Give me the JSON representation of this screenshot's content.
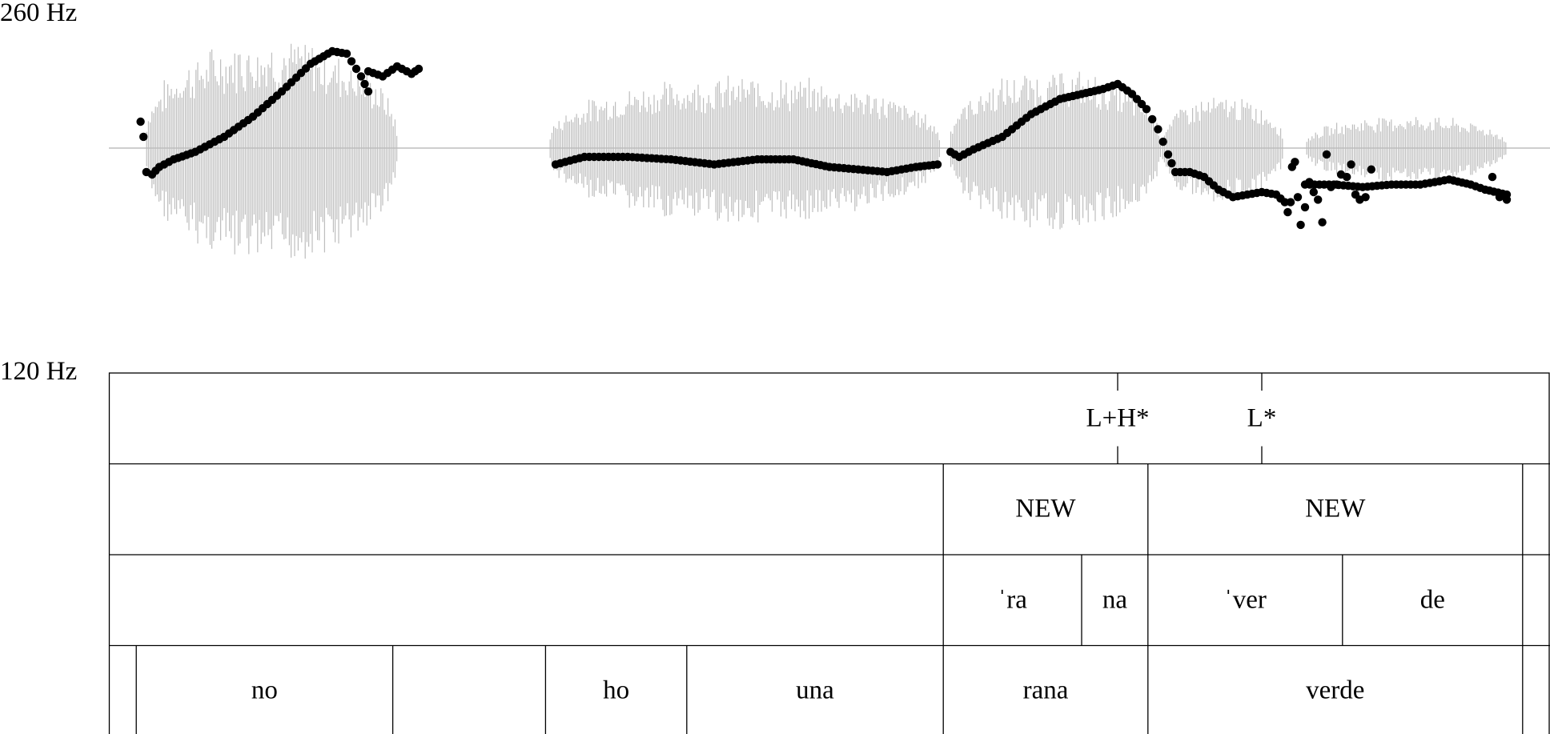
{
  "axis": {
    "top_label": "260 Hz",
    "bottom_label": "120 Hz",
    "f0_max_hz": 260,
    "f0_min_hz": 120
  },
  "tiers": {
    "tones": [
      {
        "label": "L+H*",
        "time": 0.7
      },
      {
        "label": "L*",
        "time": 0.8
      }
    ],
    "focus": [
      {
        "label": "",
        "start": 0.0,
        "end": 0.579
      },
      {
        "label": "NEW",
        "start": 0.579,
        "end": 0.721
      },
      {
        "label": "NEW",
        "start": 0.721,
        "end": 0.981
      },
      {
        "label": "",
        "start": 0.981,
        "end": 1.0
      }
    ],
    "syllables": [
      {
        "label": "",
        "start": 0.0,
        "end": 0.579
      },
      {
        "label": "ˈra",
        "start": 0.579,
        "end": 0.675
      },
      {
        "label": "na",
        "start": 0.675,
        "end": 0.721
      },
      {
        "label": "ˈver",
        "start": 0.721,
        "end": 0.856
      },
      {
        "label": "de",
        "start": 0.856,
        "end": 0.981
      },
      {
        "label": "",
        "start": 0.981,
        "end": 1.0
      }
    ],
    "words": [
      {
        "label": "",
        "start": 0.0,
        "end": 0.019
      },
      {
        "label": "no",
        "start": 0.019,
        "end": 0.197
      },
      {
        "label": "",
        "start": 0.197,
        "end": 0.303
      },
      {
        "label": "ho",
        "start": 0.303,
        "end": 0.401
      },
      {
        "label": "una",
        "start": 0.401,
        "end": 0.579
      },
      {
        "label": "rana",
        "start": 0.579,
        "end": 0.721
      },
      {
        "label": "verde",
        "start": 0.721,
        "end": 0.981
      },
      {
        "label": "",
        "start": 0.981,
        "end": 1.0
      }
    ]
  },
  "waveform": {
    "color": "#bdbdbd",
    "segments": [
      {
        "start": 0.025,
        "end": 0.2,
        "amp": 0.85
      },
      {
        "start": 0.305,
        "end": 0.577,
        "amp": 0.55
      },
      {
        "start": 0.583,
        "end": 0.73,
        "amp": 0.6
      },
      {
        "start": 0.73,
        "end": 0.815,
        "amp": 0.4
      },
      {
        "start": 0.83,
        "end": 0.97,
        "amp": 0.25
      }
    ]
  },
  "pitch": {
    "color": "#000000",
    "segments": [
      [
        [
          0.022,
          218
        ],
        [
          0.024,
          212
        ],
        [
          0.026,
          198
        ],
        [
          0.03,
          197
        ],
        [
          0.035,
          200
        ],
        [
          0.045,
          203
        ],
        [
          0.06,
          206
        ],
        [
          0.07,
          209
        ],
        [
          0.08,
          212
        ],
        [
          0.1,
          220
        ],
        [
          0.12,
          230
        ],
        [
          0.14,
          241
        ],
        [
          0.155,
          246
        ],
        [
          0.165,
          245
        ],
        [
          0.175,
          236
        ],
        [
          0.18,
          230
        ]
      ],
      [
        [
          0.18,
          238
        ],
        [
          0.19,
          236
        ],
        [
          0.2,
          240
        ],
        [
          0.21,
          237
        ],
        [
          0.215,
          239
        ]
      ],
      [
        [
          0.31,
          201
        ],
        [
          0.33,
          204
        ],
        [
          0.36,
          204
        ],
        [
          0.39,
          203
        ],
        [
          0.42,
          201
        ],
        [
          0.45,
          203
        ],
        [
          0.475,
          203
        ],
        [
          0.5,
          200
        ],
        [
          0.52,
          199
        ],
        [
          0.54,
          198
        ],
        [
          0.56,
          200
        ],
        [
          0.575,
          201
        ]
      ],
      [
        [
          0.584,
          206
        ],
        [
          0.59,
          204
        ],
        [
          0.6,
          207
        ],
        [
          0.62,
          212
        ],
        [
          0.64,
          221
        ],
        [
          0.66,
          227
        ],
        [
          0.675,
          229
        ],
        [
          0.69,
          231
        ],
        [
          0.7,
          233
        ],
        [
          0.71,
          229
        ],
        [
          0.72,
          223
        ],
        [
          0.728,
          215
        ],
        [
          0.735,
          205
        ],
        [
          0.74,
          198
        ],
        [
          0.75,
          198
        ],
        [
          0.76,
          196
        ],
        [
          0.77,
          191
        ],
        [
          0.78,
          188
        ],
        [
          0.79,
          189
        ],
        [
          0.8,
          190
        ],
        [
          0.81,
          189
        ],
        [
          0.816,
          186
        ]
      ],
      [
        [
          0.83,
          193
        ],
        [
          0.85,
          193
        ],
        [
          0.87,
          192
        ],
        [
          0.89,
          193
        ],
        [
          0.91,
          193
        ],
        [
          0.93,
          195
        ],
        [
          0.945,
          193
        ],
        [
          0.955,
          191
        ],
        [
          0.97,
          189
        ]
      ]
    ],
    "scatter": [
      [
        0.818,
        182
      ],
      [
        0.82,
        186
      ],
      [
        0.821,
        200
      ],
      [
        0.823,
        202
      ],
      [
        0.825,
        188
      ],
      [
        0.827,
        177
      ],
      [
        0.83,
        184
      ],
      [
        0.833,
        194
      ],
      [
        0.836,
        190
      ],
      [
        0.839,
        187
      ],
      [
        0.842,
        178
      ],
      [
        0.845,
        205
      ],
      [
        0.848,
        192
      ],
      [
        0.852,
        193
      ],
      [
        0.855,
        197
      ],
      [
        0.859,
        196
      ],
      [
        0.862,
        201
      ],
      [
        0.865,
        189
      ],
      [
        0.868,
        187
      ],
      [
        0.872,
        188
      ],
      [
        0.876,
        199
      ],
      [
        0.96,
        196
      ],
      [
        0.965,
        188
      ],
      [
        0.97,
        187
      ]
    ]
  }
}
